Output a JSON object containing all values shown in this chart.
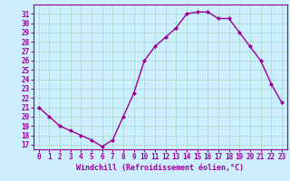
{
  "x": [
    0,
    1,
    2,
    3,
    4,
    5,
    6,
    7,
    8,
    9,
    10,
    11,
    12,
    13,
    14,
    15,
    16,
    17,
    18,
    19,
    20,
    21,
    22,
    23
  ],
  "y": [
    21,
    20,
    19,
    18.5,
    18,
    17.5,
    16.8,
    17.5,
    20,
    22.5,
    26,
    27.5,
    28.5,
    29.5,
    31,
    31.2,
    31.2,
    30.5,
    30.5,
    29,
    27.5,
    26,
    23.5,
    21.5
  ],
  "line_color": "#990099",
  "marker": "D",
  "marker_size": 2,
  "bg_color": "#cceeff",
  "grid_color": "#aaddcc",
  "xlabel": "Windchill (Refroidissement éolien,°C)",
  "xlabel_fontsize": 6,
  "tick_fontsize": 5.5,
  "ylabel_ticks": [
    17,
    18,
    19,
    20,
    21,
    22,
    23,
    24,
    25,
    26,
    27,
    28,
    29,
    30,
    31
  ],
  "xtick_labels": [
    "0",
    "1",
    "2",
    "3",
    "4",
    "5",
    "6",
    "7",
    "8",
    "9",
    "10",
    "11",
    "12",
    "13",
    "14",
    "15",
    "16",
    "17",
    "18",
    "19",
    "20",
    "21",
    "22",
    "23"
  ],
  "ylim": [
    16.5,
    32
  ],
  "xlim": [
    -0.5,
    23.5
  ]
}
